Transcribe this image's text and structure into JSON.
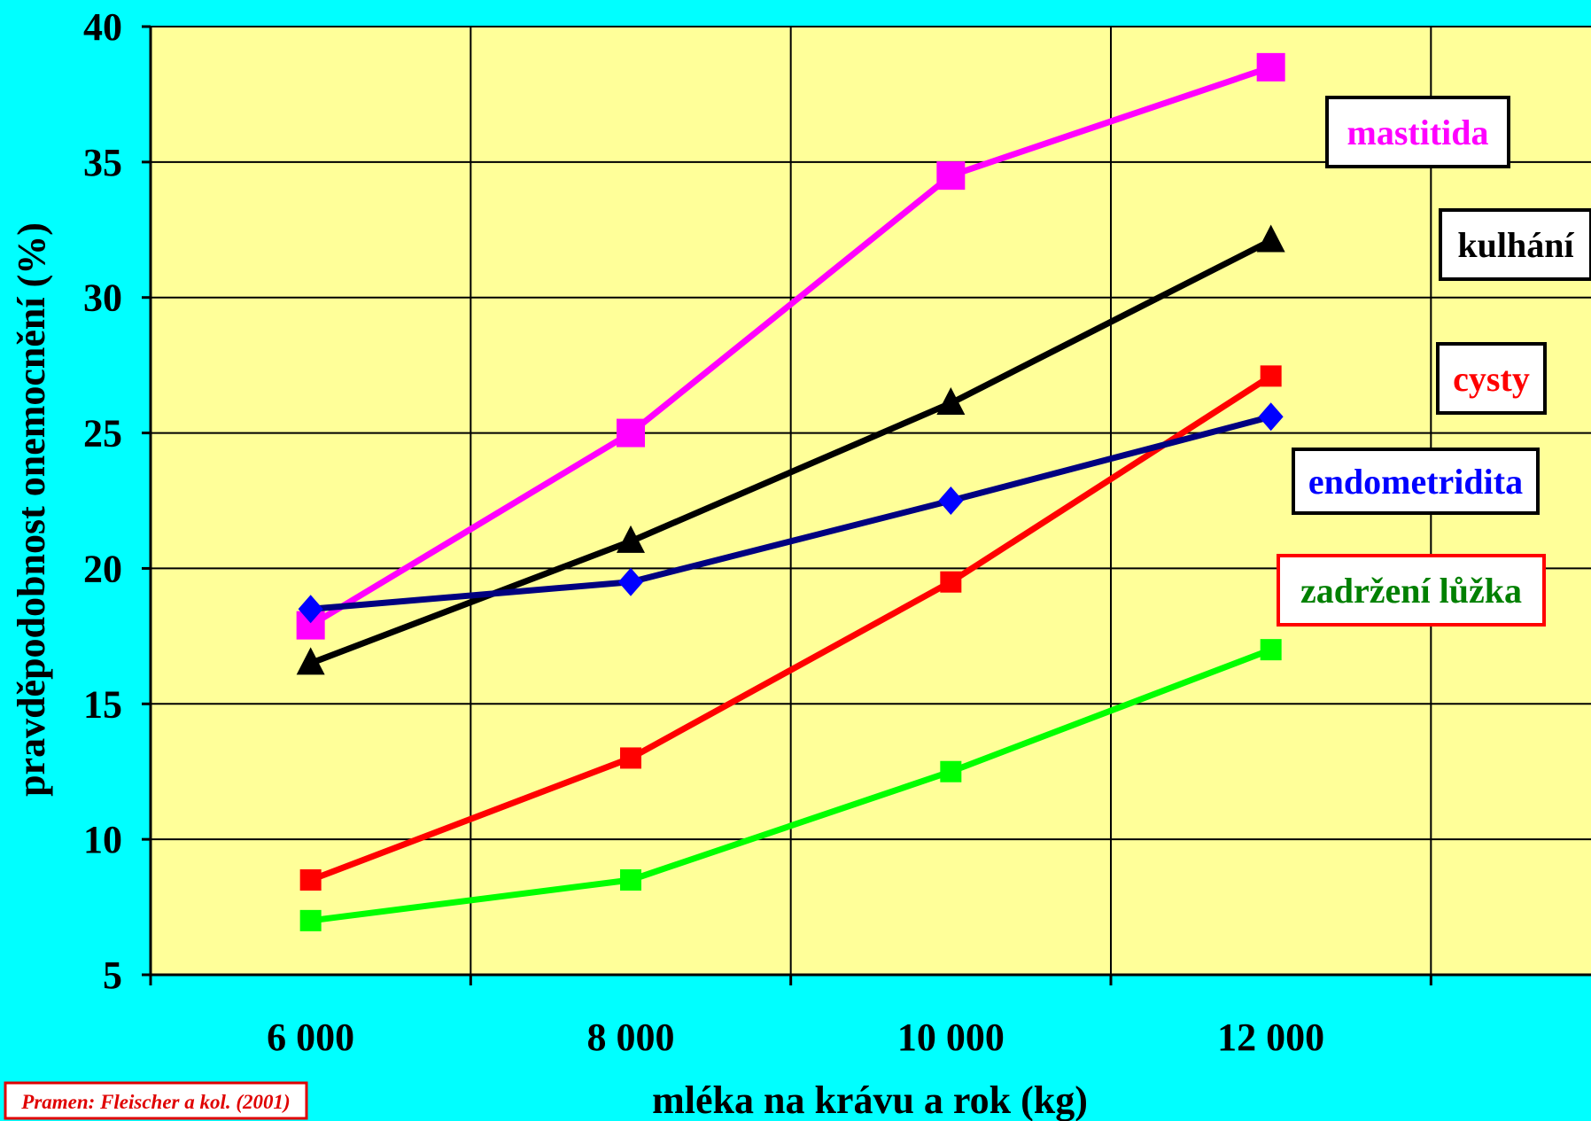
{
  "chart_data": {
    "type": "line",
    "x": [
      6000,
      8000,
      10000,
      12000
    ],
    "x_tick_labels": [
      "6 000",
      "8 000",
      "10 000",
      "12 000"
    ],
    "y_ticks": [
      5,
      10,
      15,
      20,
      25,
      30,
      35,
      40
    ],
    "ylim": [
      5,
      40
    ],
    "xlim": [
      5000,
      14000
    ],
    "xlabel": "mléka na krávu a rok (kg)",
    "ylabel": "pravděpodobnost onemocnění (%)",
    "grid": true,
    "series": [
      {
        "name": "mastitida",
        "values": [
          17.9,
          25.0,
          34.5,
          38.5
        ],
        "color": "#FF00FF",
        "marker": "square-large",
        "label_color": "#FF00FF",
        "label_border": "#000000"
      },
      {
        "name": "kulhání",
        "values": [
          16.5,
          21.0,
          26.1,
          32.1
        ],
        "color": "#000000",
        "marker": "triangle",
        "label_color": "#000000",
        "label_border": "#000000"
      },
      {
        "name": "cysty",
        "values": [
          8.5,
          13.0,
          19.5,
          27.1
        ],
        "color": "#FF0000",
        "marker": "square",
        "label_color": "#FF0000",
        "label_border": "#000000"
      },
      {
        "name": "endometridita",
        "values": [
          18.5,
          19.5,
          22.5,
          25.6
        ],
        "color": "#000080",
        "marker": "diamond",
        "marker_color": "#0000FF",
        "label_color": "#0000FF",
        "label_border": "#000000"
      },
      {
        "name": "zadržení lůžka",
        "values": [
          7.0,
          8.5,
          12.5,
          17.0
        ],
        "color": "#00FF00",
        "marker": "square",
        "label_color": "#008000",
        "label_border": "#FF0000"
      }
    ],
    "source": "Pramen: Fleischer a kol. (2001)"
  },
  "colors": {
    "background": "#00FFFF",
    "plot_area": "#FFFF99",
    "grid": "#000000"
  }
}
